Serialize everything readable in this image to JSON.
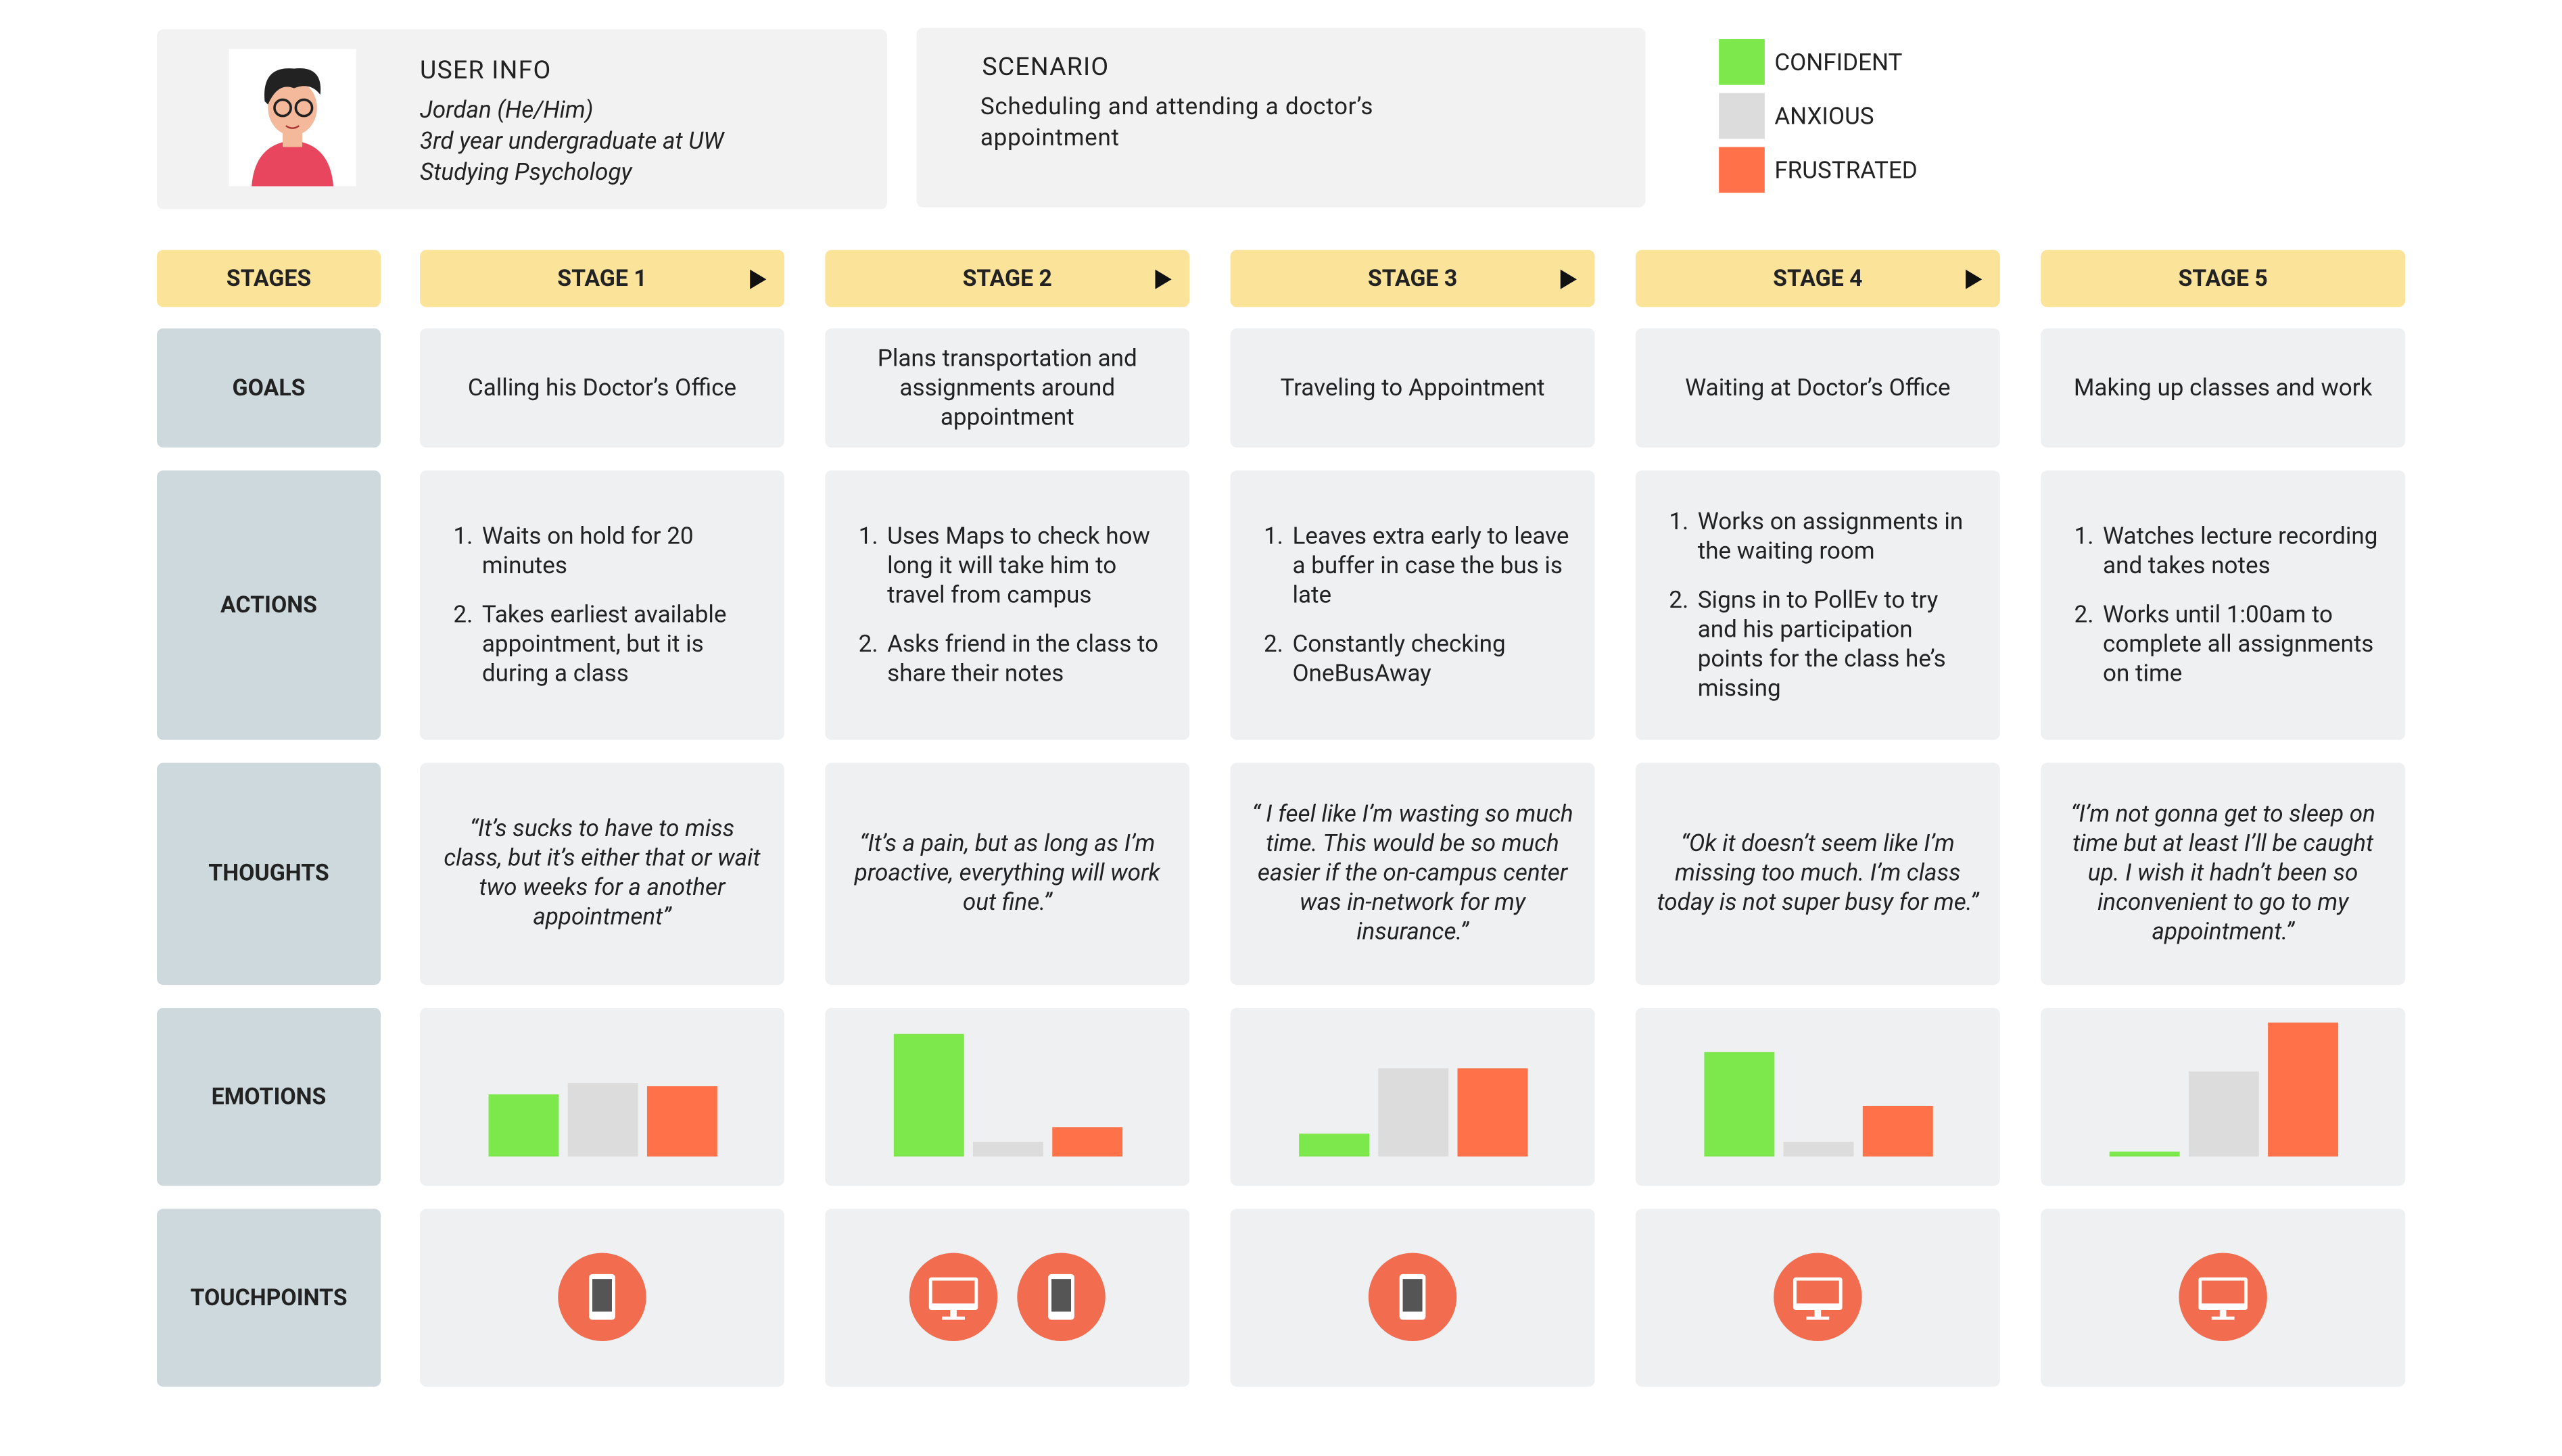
{
  "user_info": {
    "title": "USER INFO",
    "lines": [
      "Jordan (He/Him)",
      "3rd year undergraduate at UW",
      "Studying Psychology"
    ]
  },
  "scenario": {
    "title": "SCENARIO",
    "text": "Scheduling and attending a doctor’s appointment"
  },
  "legend": [
    {
      "label": "CONFIDENT",
      "color": "#7de84b"
    },
    {
      "label": "ANXIOUS",
      "color": "#dcdcdc"
    },
    {
      "label": "FRUSTRATED",
      "color": "#ff7149"
    }
  ],
  "row_labels": [
    "STAGES",
    "GOALS",
    "ACTIONS",
    "THOUGHTS",
    "EMOTIONS",
    "TOUCHPOINTS"
  ],
  "emotion_ylim": [
    0,
    90
  ],
  "stages": [
    {
      "name": "STAGE 1",
      "goal": "Calling his Doctor’s Office",
      "actions": [
        "Waits on hold for 20 minutes",
        "Takes earliest available appointment, but it is during a class"
      ],
      "thought": "“It’s sucks to have to miss class, but it’s either that or wait two weeks for a another appointment”",
      "emotions": [
        38,
        45,
        43
      ],
      "touchpoints": [
        "phone"
      ]
    },
    {
      "name": "STAGE 2",
      "goal": "Plans transportation and assignments around appointment",
      "actions": [
        "Uses Maps to check how long it will take him to travel from campus",
        "Asks friend in the class to share their notes"
      ],
      "thought": "“It’s a pain, but as long as I’m proactive, everything will work out fine.”",
      "emotions": [
        75,
        9,
        18
      ],
      "touchpoints": [
        "computer",
        "phone"
      ]
    },
    {
      "name": "STAGE 3",
      "goal": "Traveling to Appointment",
      "actions": [
        "Leaves extra early to leave a buffer in case the bus is late",
        "Constantly checking OneBusAway"
      ],
      "thought": "“ I feel like I’m wasting so much time. This would be so much easier if the on-campus center was in-network for my insurance.”",
      "emotions": [
        14,
        54,
        54
      ],
      "touchpoints": [
        "phone"
      ]
    },
    {
      "name": "STAGE 4",
      "goal": "Waiting at Doctor’s Office",
      "actions": [
        "Works on assignments in the waiting room",
        "Signs in to PollEv to try and his participation points for the class he’s missing"
      ],
      "thought": "“Ok it doesn’t seem like I’m missing too much. I’m class today is not super busy for me.”",
      "emotions": [
        64,
        9,
        31
      ],
      "touchpoints": [
        "computer"
      ]
    },
    {
      "name": "STAGE 5",
      "goal": "Making up classes and work",
      "actions": [
        "Watches lecture recording and takes notes",
        "Works until 1:00am to complete all assignments on time"
      ],
      "thought": "“I’m not gonna get to sleep on time but at least I’ll be caught up. I wish it hadn’t been so inconvenient to go to my appointment.”",
      "emotions": [
        3,
        52,
        82
      ],
      "touchpoints": [
        "computer"
      ]
    }
  ]
}
